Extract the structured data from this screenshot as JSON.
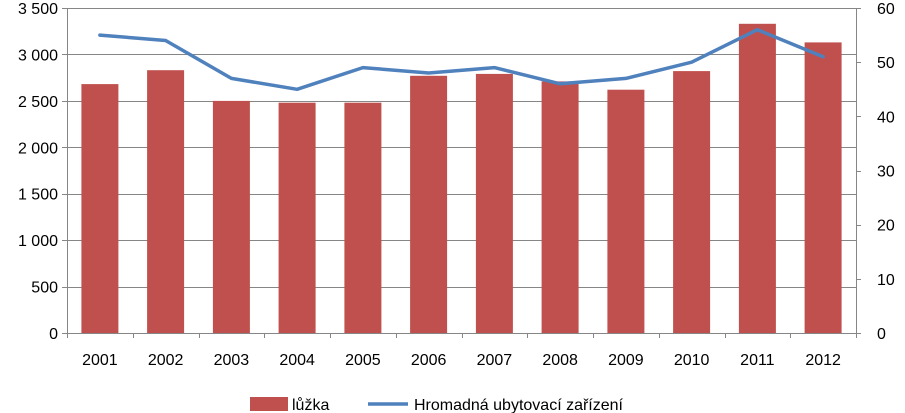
{
  "chart_data": {
    "type": "bar",
    "categories": [
      "2001",
      "2002",
      "2003",
      "2004",
      "2005",
      "2006",
      "2007",
      "2008",
      "2009",
      "2010",
      "2011",
      "2012"
    ],
    "series": [
      {
        "name": "lůžka",
        "type": "bar",
        "axis": "left",
        "color": "#c0504d",
        "values": [
          2680,
          2830,
          2500,
          2480,
          2480,
          2770,
          2790,
          2710,
          2620,
          2820,
          3330,
          3130
        ]
      },
      {
        "name": "Hromadná ubytovací zařízení",
        "type": "line",
        "axis": "right",
        "color": "#4f81bd",
        "values": [
          55,
          54,
          47,
          45,
          49,
          48,
          49,
          46,
          47,
          50,
          56,
          51
        ]
      }
    ],
    "y_left": {
      "lim": [
        0,
        3500
      ],
      "ticks": [
        0,
        500,
        1000,
        1500,
        2000,
        2500,
        3000,
        3500
      ],
      "tick_labels": [
        "0",
        "500",
        "1 000",
        "1 500",
        "2 000",
        "2 500",
        "3 000",
        "3 500"
      ]
    },
    "y_right": {
      "lim": [
        0,
        60
      ],
      "ticks": [
        0,
        10,
        20,
        30,
        40,
        50,
        60
      ],
      "tick_labels": [
        "0",
        "10",
        "20",
        "30",
        "40",
        "50",
        "60"
      ]
    },
    "grid": true,
    "legend_position": "bottom"
  }
}
